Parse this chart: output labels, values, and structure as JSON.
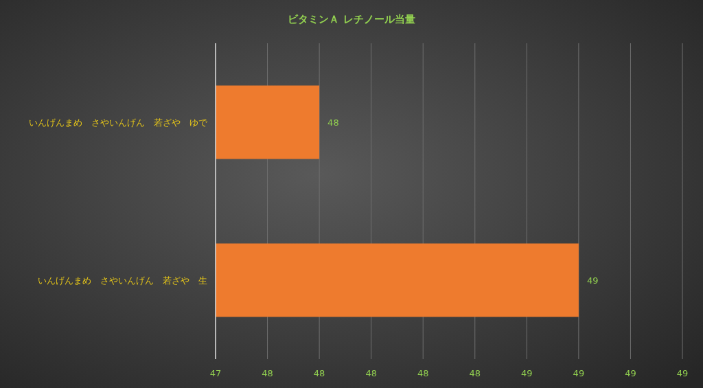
{
  "chart_data": {
    "type": "bar",
    "orientation": "horizontal",
    "title": "ビタミンＡ レチノール当量",
    "categories": [
      "いんげんまめ　さやいんげん　若ざや　ゆで",
      "いんげんまめ　さやいんげん　若ざや　生"
    ],
    "values": [
      47.8,
      48.8
    ],
    "value_labels": [
      "48",
      "49"
    ],
    "color": "#ee7b2e",
    "xlim": [
      47.4,
      49.2
    ],
    "xticks": [
      {
        "value": 47.4,
        "label": "47"
      },
      {
        "value": 47.6,
        "label": "48"
      },
      {
        "value": 47.8,
        "label": "48"
      },
      {
        "value": 48.0,
        "label": "48"
      },
      {
        "value": 48.2,
        "label": "48"
      },
      {
        "value": 48.4,
        "label": "48"
      },
      {
        "value": 48.6,
        "label": "49"
      },
      {
        "value": 48.8,
        "label": "49"
      },
      {
        "value": 49.0,
        "label": "49"
      },
      {
        "value": 49.2,
        "label": "49"
      }
    ],
    "grid": "x"
  }
}
